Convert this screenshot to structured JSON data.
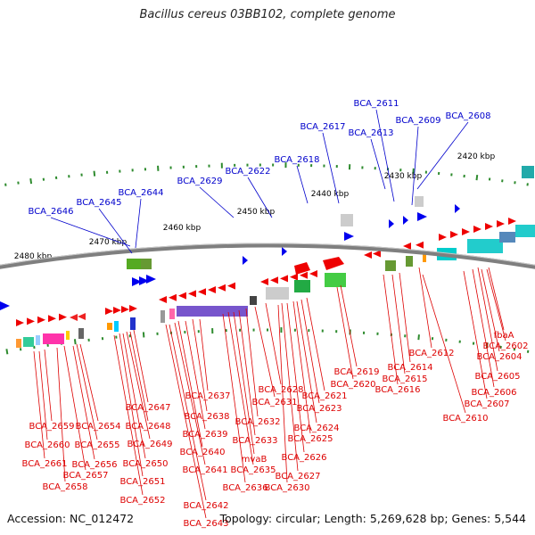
{
  "title": "Bacillus cereus 03BB102, complete genome",
  "footer": {
    "accession": "Accession: NC_012472",
    "topology": "Topology: circular; Length: 5,269,628 bp; Genes: 5,544"
  },
  "colors": {
    "backbone": "#7f7f7f",
    "ticks": "#2e8b2e",
    "upper_labels": "#0000cc",
    "lower_labels": "#dd0000"
  },
  "ruler_labels": [
    "2420 kbp",
    "2430 kbp",
    "2440 kbp",
    "2450 kbp",
    "2460 kbp",
    "2470 kbp",
    "2480 kbp"
  ],
  "upper_genes": [
    "BCA_2608",
    "BCA_2609",
    "BCA_2611",
    "BCA_2613",
    "BCA_2617",
    "BCA_2618",
    "BCA_2622",
    "BCA_2629",
    "BCA_2644",
    "BCA_2645",
    "BCA_2646"
  ],
  "lower_genes": [
    "fbaA",
    "BCA_2602",
    "BCA_2604",
    "BCA_2605",
    "BCA_2606",
    "BCA_2607",
    "BCA_2610",
    "BCA_2612",
    "BCA_2614",
    "BCA_2615",
    "BCA_2616",
    "BCA_2619",
    "BCA_2620",
    "BCA_2621",
    "BCA_2623",
    "BCA_2624",
    "BCA_2625",
    "BCA_2626",
    "BCA_2627",
    "BCA_2628",
    "BCA_2630",
    "BCA_2631",
    "BCA_2632",
    "BCA_2633",
    "mvaB",
    "BCA_2635",
    "BCA_2636",
    "BCA_2637",
    "BCA_2638",
    "BCA_2639",
    "BCA_2640",
    "BCA_2641",
    "BCA_2642",
    "BCA_2643",
    "BCA_2647",
    "BCA_2648",
    "BCA_2649",
    "BCA_2650",
    "BCA_2651",
    "BCA_2652",
    "BCA_2654",
    "BCA_2655",
    "BCA_2656",
    "BCA_2657",
    "BCA_2658",
    "BCA_2659",
    "BCA_2660",
    "BCA_2661"
  ]
}
